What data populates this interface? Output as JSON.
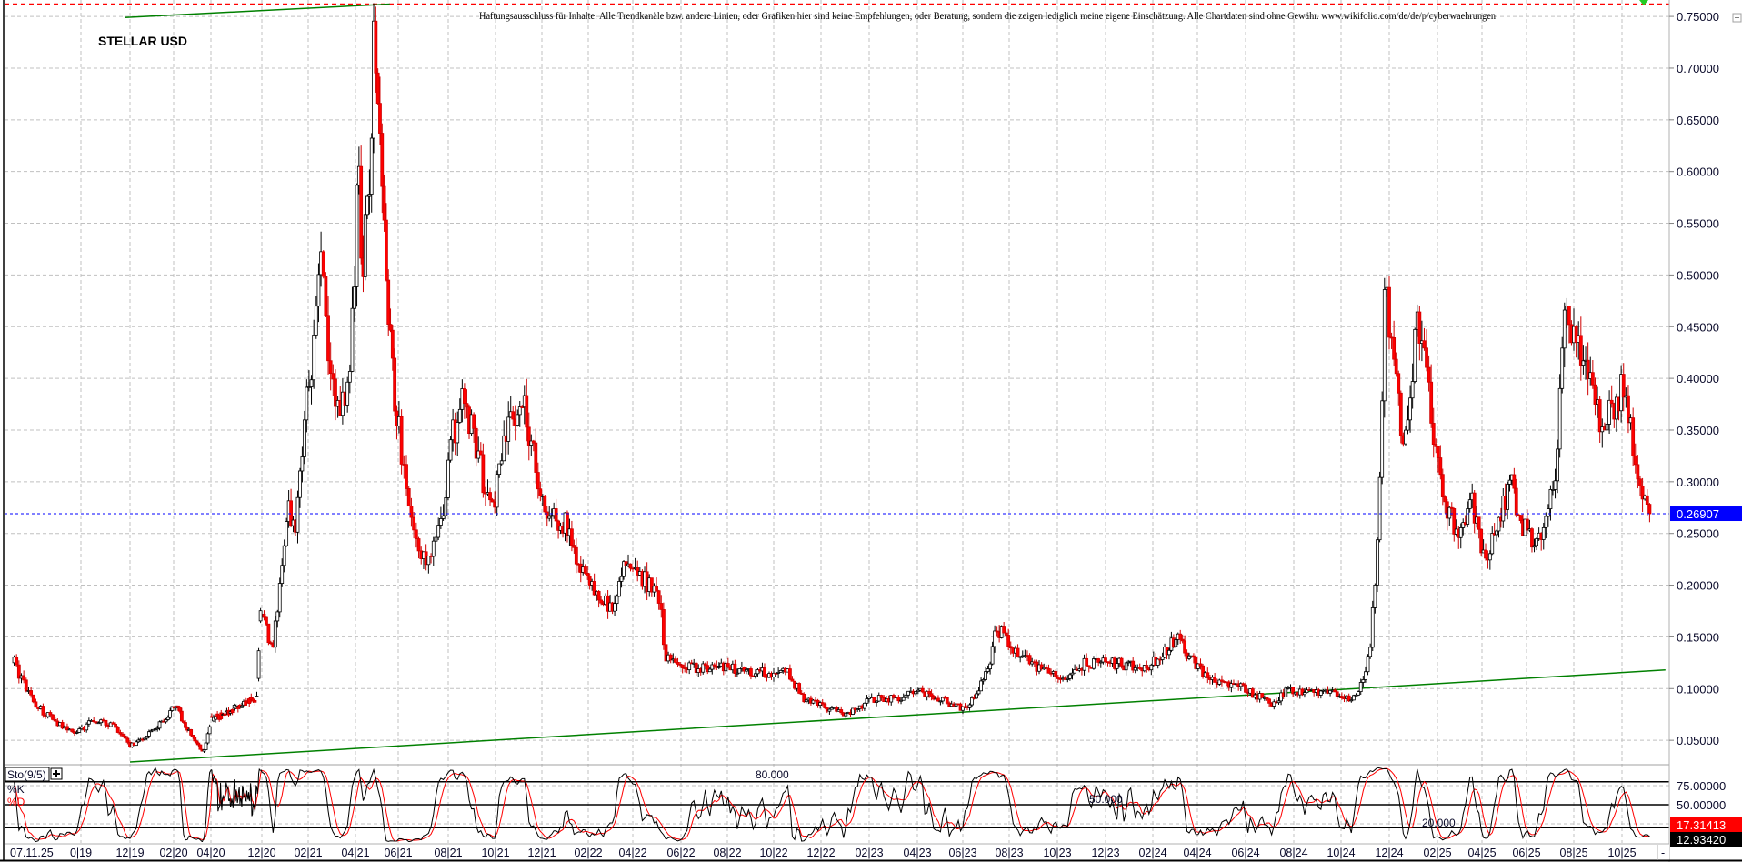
{
  "header": {
    "disclaimer": "Haftungsausschluss für Inhalte: Alle Trendkanäle bzw. andere Linien, oder Grafiken hier sind keine Empfehlungen, oder Beratung, sondern die zeigen lediglich meine eigene Einschätzung. Alle Chartdaten sind ohne Gewähr.  www.wikifolio.com/de/de/p/cyberwaehrungen",
    "title": "STELLAR USD"
  },
  "colors": {
    "up_body": "#ffffff",
    "up_border": "#000000",
    "down_body": "#ff0000",
    "down_border": "#d00000",
    "trendline": "#008000",
    "current_price": "#0000ff",
    "top_line": "#ff0000",
    "k_line": "#000000",
    "d_line": "#ff0000",
    "grid": "#c0c0c0"
  },
  "chart_data": [
    {
      "type": "candlestick",
      "title": "STELLAR USD",
      "ylim": [
        0.03,
        0.77
      ],
      "y_ticks": [
        "0.75000",
        "0.70000",
        "0.65000",
        "0.60000",
        "0.55000",
        "0.50000",
        "0.45000",
        "0.40000",
        "0.35000",
        "0.30000",
        "0.25000",
        "0.20000",
        "0.15000",
        "0.10000",
        "0.05000"
      ],
      "y_tick_values": [
        0.75,
        0.7,
        0.65,
        0.6,
        0.55,
        0.5,
        0.45,
        0.4,
        0.35,
        0.3,
        0.25,
        0.2,
        0.15,
        0.1,
        0.05
      ],
      "current_date_label": "07.11.25",
      "x_ticks": [
        {
          "label": "0|19",
          "date": "2019-10-01"
        },
        {
          "label": "12|19",
          "date": "2019-12-01"
        },
        {
          "label": "02|20",
          "date": "2020-02-01"
        },
        {
          "label": "04|20",
          "date": "2020-04-01"
        },
        {
          "label": "12|20",
          "date": "2020-12-01"
        },
        {
          "label": "02|21",
          "date": "2021-02-01"
        },
        {
          "label": "04|21",
          "date": "2021-04-01"
        },
        {
          "label": "06|21",
          "date": "2021-06-01"
        },
        {
          "label": "08|21",
          "date": "2021-08-01"
        },
        {
          "label": "10|21",
          "date": "2021-10-01"
        },
        {
          "label": "12|21",
          "date": "2021-12-01"
        },
        {
          "label": "02|22",
          "date": "2022-02-01"
        },
        {
          "label": "04|22",
          "date": "2022-04-01"
        },
        {
          "label": "06|22",
          "date": "2022-06-01"
        },
        {
          "label": "08|22",
          "date": "2022-08-01"
        },
        {
          "label": "10|22",
          "date": "2022-10-01"
        },
        {
          "label": "12|22",
          "date": "2022-12-01"
        },
        {
          "label": "02|23",
          "date": "2023-02-01"
        },
        {
          "label": "04|23",
          "date": "2023-04-01"
        },
        {
          "label": "06|23",
          "date": "2023-06-01"
        },
        {
          "label": "08|23",
          "date": "2023-08-01"
        },
        {
          "label": "10|23",
          "date": "2023-10-01"
        },
        {
          "label": "12|23",
          "date": "2023-12-01"
        },
        {
          "label": "02|24",
          "date": "2024-02-01"
        },
        {
          "label": "04|24",
          "date": "2024-04-01"
        },
        {
          "label": "06|24",
          "date": "2024-06-01"
        },
        {
          "label": "08|24",
          "date": "2024-08-01"
        },
        {
          "label": "10|24",
          "date": "2024-10-01"
        },
        {
          "label": "12|24",
          "date": "2024-12-01"
        },
        {
          "label": "02|25",
          "date": "2025-02-01"
        },
        {
          "label": "04|25",
          "date": "2025-04-01"
        },
        {
          "label": "06|25",
          "date": "2025-06-01"
        },
        {
          "label": "08|25",
          "date": "2025-08-01"
        },
        {
          "label": "10|25",
          "date": "2025-10-01"
        }
      ],
      "price_path": [
        [
          "2019-07-10",
          0.125
        ],
        [
          "2019-08-05",
          0.085
        ],
        [
          "2019-09-05",
          0.065
        ],
        [
          "2019-09-20",
          0.058
        ],
        [
          "2019-10-01",
          0.06
        ],
        [
          "2019-10-15",
          0.07
        ],
        [
          "2019-11-10",
          0.065
        ],
        [
          "2019-12-01",
          0.045
        ],
        [
          "2020-01-05",
          0.06
        ],
        [
          "2020-02-03",
          0.085
        ],
        [
          "2020-02-25",
          0.06
        ],
        [
          "2020-03-20",
          0.038
        ],
        [
          "2020-04-01",
          0.07
        ],
        [
          "2020-06-01",
          0.075
        ],
        [
          "2020-09-01",
          0.085
        ],
        [
          "2020-11-10",
          0.09
        ],
        [
          "2020-11-20",
          0.17
        ],
        [
          "2020-12-01",
          0.17
        ],
        [
          "2020-12-15",
          0.14
        ],
        [
          "2021-01-05",
          0.28
        ],
        [
          "2021-01-15",
          0.25
        ],
        [
          "2021-01-25",
          0.35
        ],
        [
          "2021-02-10",
          0.45
        ],
        [
          "2021-02-18",
          0.52
        ],
        [
          "2021-03-01",
          0.4
        ],
        [
          "2021-03-15",
          0.37
        ],
        [
          "2021-03-25",
          0.4
        ],
        [
          "2021-04-05",
          0.62
        ],
        [
          "2021-04-10",
          0.5
        ],
        [
          "2021-04-20",
          0.58
        ],
        [
          "2021-04-28",
          0.74
        ],
        [
          "2021-05-05",
          0.65
        ],
        [
          "2021-05-18",
          0.45
        ],
        [
          "2021-06-05",
          0.33
        ],
        [
          "2021-06-20",
          0.25
        ],
        [
          "2021-07-10",
          0.22
        ],
        [
          "2021-07-25",
          0.27
        ],
        [
          "2021-08-05",
          0.34
        ],
        [
          "2021-08-20",
          0.38
        ],
        [
          "2021-09-05",
          0.34
        ],
        [
          "2021-09-25",
          0.27
        ],
        [
          "2021-10-15",
          0.35
        ],
        [
          "2021-11-05",
          0.38
        ],
        [
          "2021-11-20",
          0.33
        ],
        [
          "2021-12-05",
          0.27
        ],
        [
          "2022-01-01",
          0.26
        ],
        [
          "2022-01-20",
          0.22
        ],
        [
          "2022-02-10",
          0.19
        ],
        [
          "2022-03-05",
          0.18
        ],
        [
          "2022-03-25",
          0.23
        ],
        [
          "2022-04-10",
          0.21
        ],
        [
          "2022-05-05",
          0.19
        ],
        [
          "2022-05-12",
          0.13
        ],
        [
          "2022-06-05",
          0.12
        ],
        [
          "2022-07-10",
          0.12
        ],
        [
          "2022-08-10",
          0.12
        ],
        [
          "2022-09-25",
          0.115
        ],
        [
          "2022-10-20",
          0.115
        ],
        [
          "2022-11-10",
          0.09
        ],
        [
          "2023-01-01",
          0.075
        ],
        [
          "2023-02-05",
          0.09
        ],
        [
          "2023-03-10",
          0.09
        ],
        [
          "2023-04-01",
          0.1
        ],
        [
          "2023-05-01",
          0.09
        ],
        [
          "2023-06-05",
          0.08
        ],
        [
          "2023-07-05",
          0.12
        ],
        [
          "2023-07-15",
          0.16
        ],
        [
          "2023-08-05",
          0.14
        ],
        [
          "2023-09-05",
          0.12
        ],
        [
          "2023-10-05",
          0.11
        ],
        [
          "2023-11-05",
          0.125
        ],
        [
          "2023-12-05",
          0.125
        ],
        [
          "2024-01-25",
          0.12
        ],
        [
          "2024-03-05",
          0.15
        ],
        [
          "2024-04-01",
          0.12
        ],
        [
          "2024-05-05",
          0.105
        ],
        [
          "2024-06-01",
          0.1
        ],
        [
          "2024-07-05",
          0.085
        ],
        [
          "2024-07-25",
          0.1
        ],
        [
          "2024-08-25",
          0.095
        ],
        [
          "2024-09-20",
          0.095
        ],
        [
          "2024-10-20",
          0.09
        ],
        [
          "2024-11-05",
          0.13
        ],
        [
          "2024-11-18",
          0.28
        ],
        [
          "2024-11-25",
          0.5
        ],
        [
          "2024-12-01",
          0.45
        ],
        [
          "2024-12-12",
          0.38
        ],
        [
          "2024-12-20",
          0.33
        ],
        [
          "2025-01-05",
          0.45
        ],
        [
          "2025-01-20",
          0.42
        ],
        [
          "2025-01-28",
          0.33
        ],
        [
          "2025-02-10",
          0.28
        ],
        [
          "2025-03-01",
          0.25
        ],
        [
          "2025-03-20",
          0.28
        ],
        [
          "2025-04-05",
          0.22
        ],
        [
          "2025-04-20",
          0.26
        ],
        [
          "2025-05-10",
          0.3
        ],
        [
          "2025-05-25",
          0.26
        ],
        [
          "2025-06-15",
          0.24
        ],
        [
          "2025-07-10",
          0.32
        ],
        [
          "2025-07-18",
          0.46
        ],
        [
          "2025-08-05",
          0.43
        ],
        [
          "2025-08-15",
          0.42
        ],
        [
          "2025-09-01",
          0.36
        ],
        [
          "2025-09-25",
          0.38
        ],
        [
          "2025-10-05",
          0.4
        ],
        [
          "2025-10-20",
          0.3
        ],
        [
          "2025-11-07",
          0.269
        ]
      ],
      "current_price": 0.26907,
      "current_price_label": "0.26907",
      "top_line_price": 0.762,
      "trendlines": [
        {
          "from": [
            "2019-12-01",
            0.029
          ],
          "to": [
            "2025-11-25",
            0.118
          ]
        },
        {
          "from": [
            "2019-11-25",
            0.749
          ],
          "to": [
            "2021-05-20",
            0.762
          ]
        }
      ]
    },
    {
      "type": "line",
      "indicator_label": "Sto(9/5)",
      "ylim": [
        0,
        100
      ],
      "series": [
        {
          "name": "%K",
          "color": "#000000"
        },
        {
          "name": "%D",
          "color": "#ff0000"
        }
      ],
      "y_ticks": [
        "75.00000",
        "50.00000"
      ],
      "y_tick_values": [
        75,
        50
      ],
      "levels": [
        {
          "value": 80,
          "label": "80.000"
        },
        {
          "value": 50,
          "label": "50.000"
        },
        {
          "value": 20,
          "label": "20.000"
        }
      ],
      "last_d": "17.31413",
      "last_k": "12.93420"
    }
  ]
}
